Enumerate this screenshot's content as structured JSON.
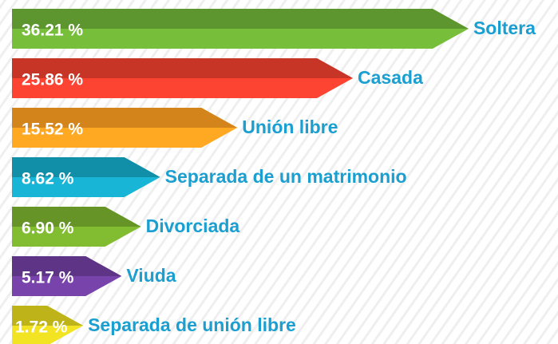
{
  "chart_data": {
    "type": "bar",
    "orientation": "horizontal",
    "categories": [
      "Soltera",
      "Casada",
      "Unión libre",
      "Separada de un matrimonio",
      "Divorciada",
      "Viuda",
      "Separada de unión libre"
    ],
    "values": [
      36.21,
      25.86,
      15.52,
      8.62,
      6.9,
      5.17,
      1.72
    ],
    "value_labels": [
      "36.21 %",
      "25.86 %",
      "15.52 %",
      "8.62 %",
      "6.90 %",
      "5.17 %",
      "1.72 %"
    ],
    "colors": [
      "#6aaa35",
      "#e23c2c",
      "#f0961e",
      "#15a2bf",
      "#74a82c",
      "#6b3c98",
      "#d8cc1e"
    ]
  }
}
